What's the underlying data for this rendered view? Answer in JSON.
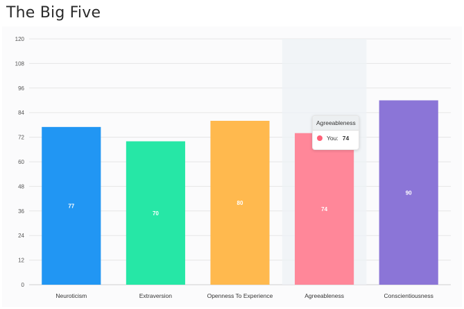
{
  "chart_data": {
    "type": "bar",
    "title": "The Big Five",
    "categories": [
      "Neuroticism",
      "Extraversion",
      "Openness To Experience",
      "Agreeableness",
      "Conscientiousness"
    ],
    "series": [
      {
        "name": "You",
        "values": [
          77,
          70,
          80,
          74,
          90
        ]
      }
    ],
    "colors": [
      "#2196f3",
      "#26e7a6",
      "#ffb94e",
      "#ff8799",
      "#8b75d7"
    ],
    "ylim": [
      0,
      120
    ],
    "yticks": [
      0,
      12,
      24,
      36,
      48,
      60,
      72,
      84,
      96,
      108,
      120
    ],
    "grid": true,
    "data_labels": true,
    "highlighted_category": "Agreeableness"
  },
  "tooltip": {
    "title": "Agreeableness",
    "series_label": "You:",
    "value": "74",
    "color": "#ff6178"
  }
}
